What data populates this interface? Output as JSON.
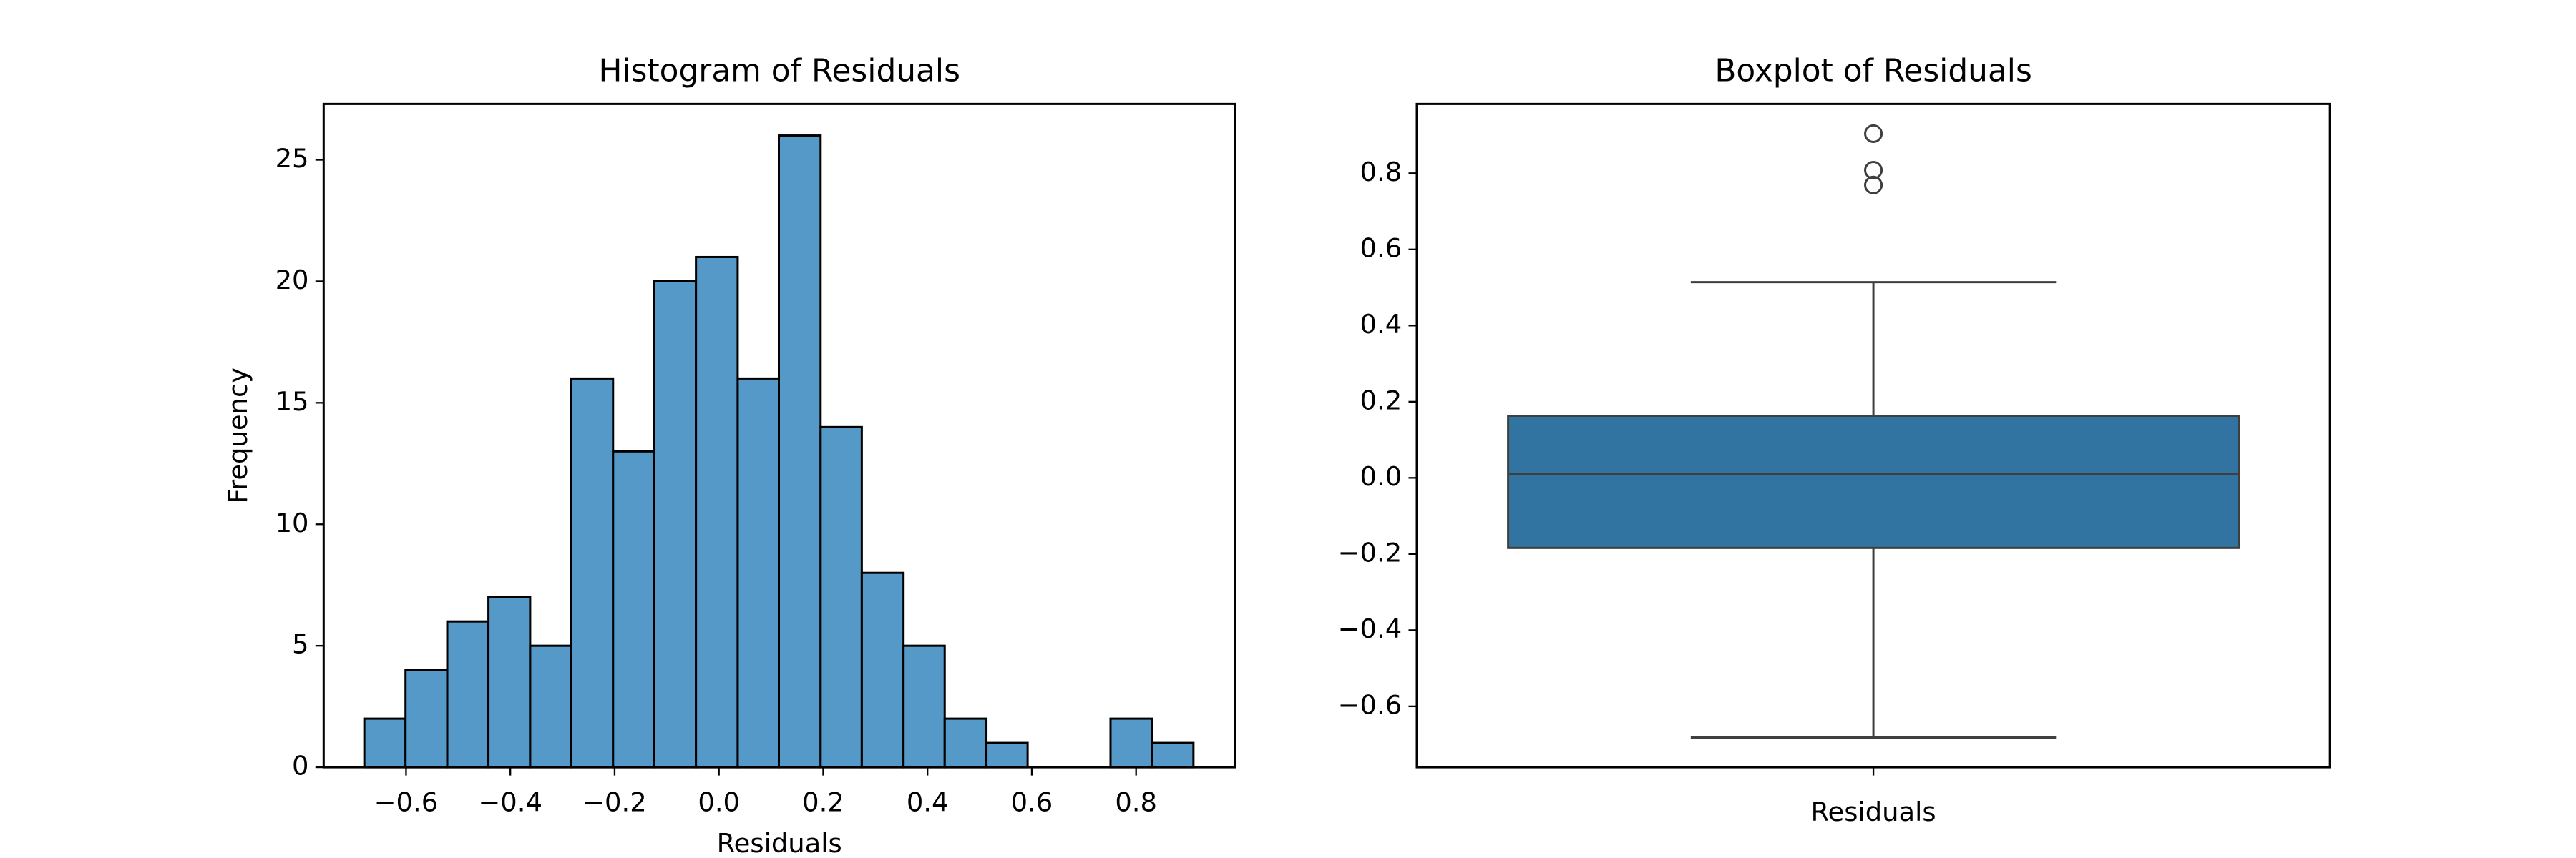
{
  "chart_data": [
    {
      "type": "histogram",
      "title": "Histogram of Residuals",
      "xlabel": "Residuals",
      "ylabel": "Frequency",
      "color": "#5499c7",
      "bins": [
        -0.68,
        -0.601,
        -0.521,
        -0.442,
        -0.362,
        -0.283,
        -0.203,
        -0.124,
        -0.044,
        0.036,
        0.115,
        0.195,
        0.274,
        0.354,
        0.433,
        0.513,
        0.592,
        0.672,
        0.751,
        0.831,
        0.91
      ],
      "values": [
        2,
        4,
        6,
        7,
        5,
        16,
        13,
        20,
        21,
        16,
        26,
        14,
        8,
        5,
        2,
        1,
        0,
        0,
        2,
        1
      ],
      "xlim": [
        -0.758,
        0.99
      ],
      "ylim": [
        0,
        27.3
      ],
      "xticks": [
        {
          "value": -0.6,
          "label": "−0.6"
        },
        {
          "value": -0.4,
          "label": "−0.4"
        },
        {
          "value": -0.2,
          "label": "−0.2"
        },
        {
          "value": 0,
          "label": "0.0"
        },
        0.2,
        0.4,
        0.6,
        0.8
      ],
      "yticks": [
        0,
        5,
        10,
        15,
        20,
        25
      ]
    },
    {
      "type": "box",
      "title": "Boxplot of Residuals",
      "color": "#3274a1",
      "categories": [
        "Residuals"
      ],
      "whisker_low": [
        -0.682
      ],
      "q1": [
        -0.184
      ],
      "median": [
        0.011
      ],
      "q3": [
        0.163
      ],
      "whisker_high": [
        0.514
      ],
      "outliers": [
        [
          0.904,
          0.808,
          0.769
        ]
      ],
      "ylim": [
        -0.76,
        0.982
      ],
      "yticks": [
        {
          "value": -0.6,
          "label": "−0.6"
        },
        {
          "value": -0.4,
          "label": "−0.4"
        },
        {
          "value": -0.2,
          "label": "−0.2"
        },
        {
          "value": 0,
          "label": "0.0"
        },
        0.2,
        0.4,
        0.6,
        0.8
      ]
    }
  ]
}
